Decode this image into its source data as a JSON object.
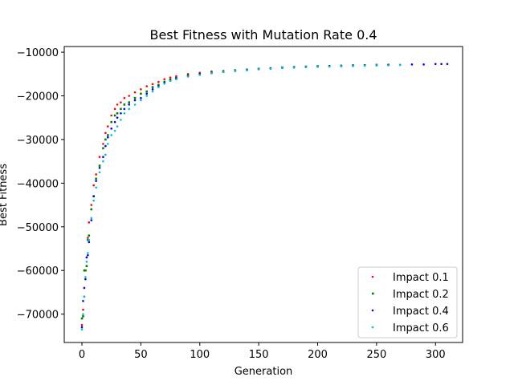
{
  "chart_data": {
    "type": "scatter",
    "title": "Best Fitness with Mutation Rate 0.4",
    "xlabel": "Generation",
    "ylabel": "Best Fitness",
    "xlim": [
      -15,
      323
    ],
    "ylim": [
      -76500,
      -8700
    ],
    "xticks": [
      0,
      50,
      100,
      150,
      200,
      250,
      300
    ],
    "yticks": [
      -70000,
      -60000,
      -50000,
      -40000,
      -30000,
      -20000,
      -10000
    ],
    "grid": false,
    "legend_position": "lower-right",
    "series": [
      {
        "name": "Impact 0.1",
        "color": "#ff0000",
        "marker": "point",
        "x": [
          0,
          1,
          2,
          3,
          4,
          5,
          6,
          8,
          10,
          12,
          15,
          18,
          20,
          22,
          25,
          28,
          30,
          33,
          36,
          40,
          45,
          50,
          55,
          60,
          65,
          70,
          75,
          80,
          90,
          100,
          110,
          120,
          130,
          140,
          150,
          160,
          170,
          180,
          190,
          200,
          210,
          220,
          230,
          240,
          250
        ],
        "y": [
          -72500,
          -69000,
          -66000,
          -60000,
          -57000,
          -52500,
          -49000,
          -45000,
          -40500,
          -38000,
          -34000,
          -31000,
          -28500,
          -27000,
          -24500,
          -23000,
          -22000,
          -21500,
          -20500,
          -20000,
          -19200,
          -18500,
          -17800,
          -17300,
          -16800,
          -16200,
          -15800,
          -15500,
          -15000,
          -14700,
          -14400,
          -14300,
          -14100,
          -14000,
          -13900,
          -13700,
          -13600,
          -13500,
          -13400,
          -13300,
          -13200,
          -13100,
          -13100,
          -13000,
          -13000
        ]
      },
      {
        "name": "Impact 0.2",
        "color": "#008000",
        "marker": "square",
        "x": [
          0,
          1,
          2,
          3,
          4,
          5,
          6,
          8,
          10,
          12,
          15,
          18,
          20,
          22,
          25,
          28,
          30,
          33,
          36,
          40,
          45,
          50,
          55,
          60,
          65,
          70,
          75,
          80,
          90,
          100,
          110,
          120,
          130,
          140,
          150,
          160,
          170,
          180,
          190,
          200,
          210,
          220,
          230,
          240,
          250,
          260
        ],
        "y": [
          -71000,
          -70500,
          -60000,
          -60000,
          -59000,
          -53000,
          -52000,
          -46000,
          -43000,
          -39000,
          -36000,
          -32000,
          -30000,
          -29000,
          -26000,
          -24500,
          -24000,
          -23000,
          -22000,
          -21500,
          -20500,
          -19500,
          -19000,
          -18000,
          -17500,
          -16800,
          -16300,
          -15900,
          -15300,
          -15000,
          -14600,
          -14400,
          -14200,
          -14000,
          -13800,
          -13700,
          -13500,
          -13400,
          -13300,
          -13200,
          -13200,
          -13100,
          -13000,
          -13000,
          -12900,
          -12900
        ]
      },
      {
        "name": "Impact 0.4",
        "color": "#0000ff",
        "marker": "point",
        "x": [
          0,
          1,
          2,
          3,
          4,
          5,
          6,
          8,
          10,
          12,
          15,
          18,
          20,
          22,
          25,
          28,
          30,
          33,
          36,
          40,
          45,
          50,
          55,
          60,
          65,
          70,
          75,
          80,
          90,
          100,
          110,
          120,
          130,
          140,
          150,
          160,
          170,
          180,
          190,
          200,
          210,
          220,
          230,
          240,
          250,
          260,
          270,
          280,
          290,
          300,
          305,
          310
        ],
        "y": [
          -73000,
          -67000,
          -64000,
          -62000,
          -57000,
          -56500,
          -53500,
          -48500,
          -43000,
          -39500,
          -36500,
          -34000,
          -31500,
          -29500,
          -27500,
          -26000,
          -25000,
          -24000,
          -23000,
          -22000,
          -21000,
          -20500,
          -19500,
          -18500,
          -17800,
          -17000,
          -16500,
          -16000,
          -15500,
          -15000,
          -14800,
          -14500,
          -14300,
          -14100,
          -13900,
          -13700,
          -13600,
          -13500,
          -13400,
          -13300,
          -13200,
          -13200,
          -13100,
          -13000,
          -13000,
          -12900,
          -12900,
          -12800,
          -12800,
          -12700,
          -12700,
          -12700
        ]
      },
      {
        "name": "Impact 0.6",
        "color": "#00bfd8",
        "marker": "point",
        "x": [
          0,
          1,
          2,
          3,
          4,
          5,
          6,
          8,
          10,
          12,
          15,
          18,
          20,
          22,
          25,
          28,
          30,
          33,
          36,
          40,
          45,
          50,
          55,
          60,
          65,
          70,
          75,
          80,
          90,
          100,
          110,
          120,
          130,
          140,
          150,
          160,
          170,
          180,
          190,
          200,
          210,
          220,
          230,
          240,
          250,
          260,
          270
        ],
        "y": [
          -73500,
          -70000,
          -66000,
          -61500,
          -58000,
          -56000,
          -53000,
          -48000,
          -44000,
          -41000,
          -37500,
          -35000,
          -33500,
          -31000,
          -29000,
          -28000,
          -27000,
          -25500,
          -24000,
          -23000,
          -22000,
          -21000,
          -20000,
          -19000,
          -18000,
          -17200,
          -16600,
          -16200,
          -15600,
          -15200,
          -14800,
          -14500,
          -14300,
          -14100,
          -13900,
          -13800,
          -13600,
          -13500,
          -13400,
          -13300,
          -13300,
          -13200,
          -13100,
          -13100,
          -13000,
          -13000,
          -12900
        ]
      }
    ]
  }
}
